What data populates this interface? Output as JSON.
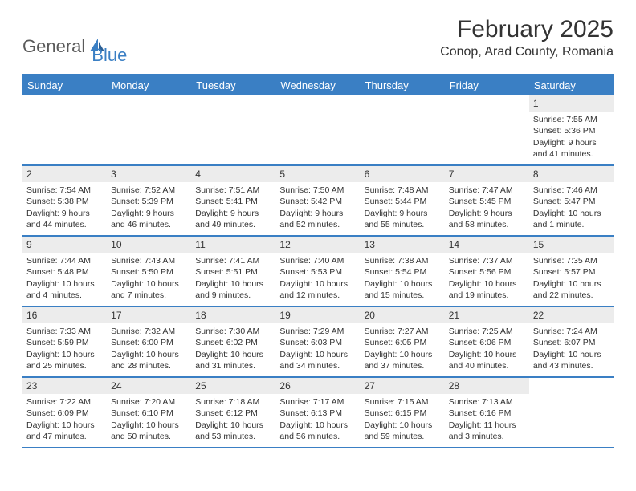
{
  "logo": {
    "text1": "General",
    "text2": "Blue"
  },
  "title": "February 2025",
  "location": "Conop, Arad County, Romania",
  "dayHeaders": [
    "Sunday",
    "Monday",
    "Tuesday",
    "Wednesday",
    "Thursday",
    "Friday",
    "Saturday"
  ],
  "colors": {
    "accent": "#3a7fc4",
    "headerBg": "#3a7fc4",
    "headerText": "#ffffff",
    "dayNumBg": "#ececec",
    "text": "#333333",
    "logoGray": "#5a5a5a"
  },
  "weeks": [
    [
      null,
      null,
      null,
      null,
      null,
      null,
      {
        "n": "1",
        "sr": "7:55 AM",
        "ss": "5:36 PM",
        "dl": "9 hours and 41 minutes."
      }
    ],
    [
      {
        "n": "2",
        "sr": "7:54 AM",
        "ss": "5:38 PM",
        "dl": "9 hours and 44 minutes."
      },
      {
        "n": "3",
        "sr": "7:52 AM",
        "ss": "5:39 PM",
        "dl": "9 hours and 46 minutes."
      },
      {
        "n": "4",
        "sr": "7:51 AM",
        "ss": "5:41 PM",
        "dl": "9 hours and 49 minutes."
      },
      {
        "n": "5",
        "sr": "7:50 AM",
        "ss": "5:42 PM",
        "dl": "9 hours and 52 minutes."
      },
      {
        "n": "6",
        "sr": "7:48 AM",
        "ss": "5:44 PM",
        "dl": "9 hours and 55 minutes."
      },
      {
        "n": "7",
        "sr": "7:47 AM",
        "ss": "5:45 PM",
        "dl": "9 hours and 58 minutes."
      },
      {
        "n": "8",
        "sr": "7:46 AM",
        "ss": "5:47 PM",
        "dl": "10 hours and 1 minute."
      }
    ],
    [
      {
        "n": "9",
        "sr": "7:44 AM",
        "ss": "5:48 PM",
        "dl": "10 hours and 4 minutes."
      },
      {
        "n": "10",
        "sr": "7:43 AM",
        "ss": "5:50 PM",
        "dl": "10 hours and 7 minutes."
      },
      {
        "n": "11",
        "sr": "7:41 AM",
        "ss": "5:51 PM",
        "dl": "10 hours and 9 minutes."
      },
      {
        "n": "12",
        "sr": "7:40 AM",
        "ss": "5:53 PM",
        "dl": "10 hours and 12 minutes."
      },
      {
        "n": "13",
        "sr": "7:38 AM",
        "ss": "5:54 PM",
        "dl": "10 hours and 15 minutes."
      },
      {
        "n": "14",
        "sr": "7:37 AM",
        "ss": "5:56 PM",
        "dl": "10 hours and 19 minutes."
      },
      {
        "n": "15",
        "sr": "7:35 AM",
        "ss": "5:57 PM",
        "dl": "10 hours and 22 minutes."
      }
    ],
    [
      {
        "n": "16",
        "sr": "7:33 AM",
        "ss": "5:59 PM",
        "dl": "10 hours and 25 minutes."
      },
      {
        "n": "17",
        "sr": "7:32 AM",
        "ss": "6:00 PM",
        "dl": "10 hours and 28 minutes."
      },
      {
        "n": "18",
        "sr": "7:30 AM",
        "ss": "6:02 PM",
        "dl": "10 hours and 31 minutes."
      },
      {
        "n": "19",
        "sr": "7:29 AM",
        "ss": "6:03 PM",
        "dl": "10 hours and 34 minutes."
      },
      {
        "n": "20",
        "sr": "7:27 AM",
        "ss": "6:05 PM",
        "dl": "10 hours and 37 minutes."
      },
      {
        "n": "21",
        "sr": "7:25 AM",
        "ss": "6:06 PM",
        "dl": "10 hours and 40 minutes."
      },
      {
        "n": "22",
        "sr": "7:24 AM",
        "ss": "6:07 PM",
        "dl": "10 hours and 43 minutes."
      }
    ],
    [
      {
        "n": "23",
        "sr": "7:22 AM",
        "ss": "6:09 PM",
        "dl": "10 hours and 47 minutes."
      },
      {
        "n": "24",
        "sr": "7:20 AM",
        "ss": "6:10 PM",
        "dl": "10 hours and 50 minutes."
      },
      {
        "n": "25",
        "sr": "7:18 AM",
        "ss": "6:12 PM",
        "dl": "10 hours and 53 minutes."
      },
      {
        "n": "26",
        "sr": "7:17 AM",
        "ss": "6:13 PM",
        "dl": "10 hours and 56 minutes."
      },
      {
        "n": "27",
        "sr": "7:15 AM",
        "ss": "6:15 PM",
        "dl": "10 hours and 59 minutes."
      },
      {
        "n": "28",
        "sr": "7:13 AM",
        "ss": "6:16 PM",
        "dl": "11 hours and 3 minutes."
      },
      null
    ]
  ],
  "labels": {
    "sunrise": "Sunrise: ",
    "sunset": "Sunset: ",
    "daylight": "Daylight: "
  }
}
